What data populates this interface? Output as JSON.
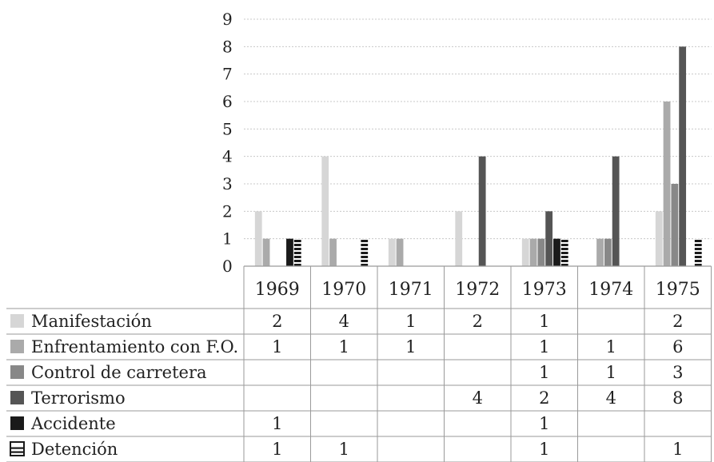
{
  "chart_data": {
    "type": "bar",
    "categories": [
      "1969",
      "1970",
      "1971",
      "1972",
      "1973",
      "1974",
      "1975"
    ],
    "ylim": [
      0,
      9
    ],
    "yticks": [
      "0",
      "1",
      "2",
      "3",
      "4",
      "5",
      "6",
      "7",
      "8",
      "9"
    ],
    "grid": true,
    "legend": "data-table-rows",
    "series": [
      {
        "name": "Manifestación",
        "color": "#d6d6d6",
        "pattern": "solid",
        "values": [
          2,
          4,
          1,
          2,
          1,
          null,
          2
        ],
        "table_values": [
          "2",
          "4",
          "1",
          "2",
          "1",
          "",
          "2"
        ]
      },
      {
        "name": "Enfrentamiento con F.O.",
        "color": "#aaaaaa",
        "pattern": "solid",
        "values": [
          1,
          1,
          1,
          null,
          1,
          1,
          6
        ],
        "table_values": [
          "1",
          "1",
          "1",
          "",
          "1",
          "1",
          "6"
        ]
      },
      {
        "name": "Control de carretera",
        "color": "#888888",
        "pattern": "solid",
        "values": [
          null,
          null,
          null,
          null,
          1,
          1,
          3
        ],
        "table_values": [
          "",
          "",
          "",
          "",
          "1",
          "1",
          "3"
        ]
      },
      {
        "name": "Terrorismo",
        "color": "#555555",
        "pattern": "solid",
        "values": [
          null,
          null,
          null,
          4,
          2,
          4,
          8
        ],
        "table_values": [
          "",
          "",
          "",
          "4",
          "2",
          "4",
          "8"
        ]
      },
      {
        "name": "Accidente",
        "color": "#1a1a1a",
        "pattern": "solid",
        "values": [
          1,
          null,
          null,
          null,
          1,
          null,
          null
        ],
        "table_values": [
          "1",
          "",
          "",
          "",
          "1",
          "",
          ""
        ]
      },
      {
        "name": "Detención",
        "color": "#1a1a1a",
        "pattern": "horizontal-stripes",
        "values": [
          1,
          1,
          null,
          null,
          1,
          null,
          1
        ],
        "table_values": [
          "1",
          "1",
          "",
          "",
          "1",
          "",
          "1"
        ]
      }
    ]
  }
}
